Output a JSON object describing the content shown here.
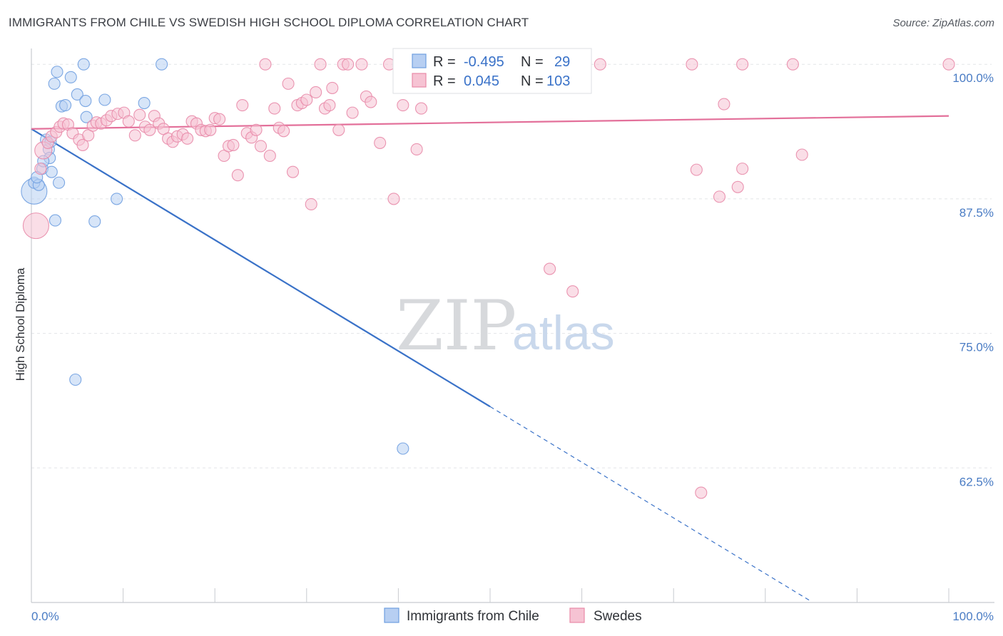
{
  "title": "IMMIGRANTS FROM CHILE VS SWEDISH HIGH SCHOOL DIPLOMA CORRELATION CHART",
  "source": "Source: ZipAtlas.com",
  "watermark": {
    "zip": "ZIP",
    "atlas": "atlas"
  },
  "colors": {
    "blue": "#6f9fe0",
    "blue_fill": "#b7cff2",
    "blue_line": "#3a72c8",
    "pink": "#e88aa8",
    "pink_fill": "#f6c3d3",
    "pink_line": "#e3709a",
    "grid": "#e3e5e8",
    "tick_label": "#4a7cc4"
  },
  "legend": {
    "r_label": "R =",
    "n_label": "N =",
    "rows": [
      {
        "r": "-0.495",
        "n": "29"
      },
      {
        "r": "0.045",
        "n": "103"
      }
    ]
  },
  "chart_data": {
    "type": "scatter",
    "xlabel": "",
    "ylabel": "High School Diploma",
    "xlim": [
      0,
      100
    ],
    "ylim": [
      50,
      102
    ],
    "x_tick_labels": [
      {
        "value": 0,
        "label": "0.0%"
      },
      {
        "value": 100,
        "label": "100.0%"
      }
    ],
    "y_ticks": [
      {
        "value": 100,
        "label": "100.0%"
      },
      {
        "value": 87.5,
        "label": "87.5%"
      },
      {
        "value": 75,
        "label": "75.0%"
      },
      {
        "value": 62.5,
        "label": "62.5%"
      }
    ],
    "grid": true,
    "legend_position": "top-center",
    "series": [
      {
        "name": "Immigrants from Chile",
        "color": "#6f9fe0",
        "trend": {
          "x": [
            0,
            50
          ],
          "y": [
            94.0,
            68.2
          ],
          "dashed_to": [
            85,
            50.1
          ]
        },
        "points": [
          [
            0.3,
            88.2,
            3
          ],
          [
            0.3,
            89.0,
            1
          ],
          [
            0.8,
            88.8,
            1
          ],
          [
            1.2,
            90.3,
            1
          ],
          [
            1.6,
            93.0,
            1
          ],
          [
            1.9,
            92.1,
            1
          ],
          [
            2.1,
            92.8,
            1
          ],
          [
            2.0,
            91.3,
            1
          ],
          [
            2.2,
            90.0,
            1
          ],
          [
            2.5,
            98.2,
            1
          ],
          [
            2.8,
            99.3,
            1
          ],
          [
            3.0,
            89.0,
            1
          ],
          [
            3.3,
            96.1,
            1
          ],
          [
            3.7,
            96.2,
            1
          ],
          [
            4.3,
            98.8,
            1
          ],
          [
            5.0,
            97.2,
            1
          ],
          [
            5.7,
            100.0,
            1
          ],
          [
            5.9,
            96.6,
            1
          ],
          [
            6.0,
            95.1,
            1
          ],
          [
            8.0,
            96.7,
            1
          ],
          [
            9.3,
            87.5,
            1
          ],
          [
            12.3,
            96.4,
            1
          ],
          [
            14.2,
            100.0,
            1
          ],
          [
            2.6,
            85.5,
            1
          ],
          [
            6.9,
            85.4,
            1
          ],
          [
            4.8,
            70.7,
            1
          ],
          [
            40.5,
            64.3,
            1
          ],
          [
            1.3,
            91.0,
            1
          ],
          [
            0.6,
            89.5,
            1
          ]
        ]
      },
      {
        "name": "Swedes",
        "color": "#e88aa8",
        "trend": {
          "x": [
            0,
            100
          ],
          "y": [
            94.0,
            95.2
          ]
        },
        "points": [
          [
            0.5,
            85.0,
            3
          ],
          [
            1.0,
            90.3,
            1
          ],
          [
            1.3,
            92.0,
            2
          ],
          [
            1.8,
            92.7,
            1
          ],
          [
            2.2,
            93.3,
            1
          ],
          [
            2.7,
            93.7,
            1
          ],
          [
            3.1,
            94.2,
            1
          ],
          [
            3.5,
            94.5,
            1
          ],
          [
            4.0,
            94.4,
            1
          ],
          [
            4.5,
            93.6,
            1
          ],
          [
            5.2,
            93.0,
            1
          ],
          [
            5.6,
            92.5,
            1
          ],
          [
            6.2,
            93.4,
            1
          ],
          [
            6.7,
            94.3,
            1
          ],
          [
            7.1,
            94.6,
            1
          ],
          [
            7.6,
            94.5,
            1
          ],
          [
            8.2,
            94.8,
            1
          ],
          [
            8.7,
            95.2,
            1
          ],
          [
            9.4,
            95.4,
            1
          ],
          [
            10.1,
            95.5,
            1
          ],
          [
            10.6,
            94.7,
            1
          ],
          [
            11.3,
            93.4,
            1
          ],
          [
            11.8,
            95.3,
            1
          ],
          [
            12.4,
            94.2,
            1
          ],
          [
            12.9,
            93.9,
            1
          ],
          [
            13.4,
            95.2,
            1
          ],
          [
            13.9,
            94.5,
            1
          ],
          [
            14.4,
            94.0,
            1
          ],
          [
            14.9,
            93.1,
            1
          ],
          [
            15.4,
            92.8,
            1
          ],
          [
            15.9,
            93.3,
            1
          ],
          [
            16.5,
            93.5,
            1
          ],
          [
            17.0,
            93.1,
            1
          ],
          [
            17.5,
            94.7,
            1
          ],
          [
            18.0,
            94.5,
            1
          ],
          [
            18.5,
            93.9,
            1
          ],
          [
            19.0,
            93.8,
            1
          ],
          [
            19.5,
            93.9,
            1
          ],
          [
            20.0,
            95.0,
            1
          ],
          [
            20.5,
            94.9,
            1
          ],
          [
            21.0,
            91.5,
            1
          ],
          [
            21.5,
            92.4,
            1
          ],
          [
            22.0,
            92.5,
            1
          ],
          [
            22.5,
            89.7,
            1
          ],
          [
            23.0,
            96.2,
            1
          ],
          [
            23.5,
            93.6,
            1
          ],
          [
            24.0,
            93.2,
            1
          ],
          [
            24.5,
            93.9,
            1
          ],
          [
            25.0,
            92.4,
            1
          ],
          [
            25.5,
            100.0,
            1
          ],
          [
            26.0,
            91.5,
            1
          ],
          [
            26.5,
            95.9,
            1
          ],
          [
            27.0,
            94.1,
            1
          ],
          [
            27.5,
            93.8,
            1
          ],
          [
            28.0,
            98.2,
            1
          ],
          [
            28.5,
            90.0,
            1
          ],
          [
            29.0,
            96.2,
            1
          ],
          [
            29.5,
            96.4,
            1
          ],
          [
            30.0,
            96.7,
            1
          ],
          [
            30.5,
            87.0,
            1
          ],
          [
            31.0,
            97.4,
            1
          ],
          [
            31.5,
            100.0,
            1
          ],
          [
            32.0,
            95.9,
            1
          ],
          [
            32.5,
            96.2,
            1
          ],
          [
            32.8,
            97.8,
            1
          ],
          [
            33.5,
            93.9,
            1
          ],
          [
            34.0,
            100.0,
            1
          ],
          [
            34.5,
            100.0,
            1
          ],
          [
            35.0,
            95.5,
            1
          ],
          [
            36.0,
            100.0,
            1
          ],
          [
            36.5,
            97.0,
            1
          ],
          [
            37.0,
            96.5,
            1
          ],
          [
            38.0,
            92.7,
            1
          ],
          [
            39.0,
            100.0,
            1
          ],
          [
            39.5,
            87.5,
            1
          ],
          [
            40.5,
            96.2,
            1
          ],
          [
            41.0,
            100.0,
            1
          ],
          [
            42.0,
            92.1,
            1
          ],
          [
            42.5,
            95.9,
            1
          ],
          [
            45.0,
            100.0,
            1
          ],
          [
            45.5,
            100.0,
            1
          ],
          [
            47.0,
            100.0,
            1
          ],
          [
            48.0,
            100.0,
            1
          ],
          [
            50.0,
            100.0,
            1
          ],
          [
            52.0,
            100.0,
            1
          ],
          [
            54.0,
            100.0,
            1
          ],
          [
            56.0,
            100.0,
            1
          ],
          [
            58.0,
            100.0,
            1
          ],
          [
            60.0,
            100.0,
            1
          ],
          [
            62.0,
            100.0,
            1
          ],
          [
            72.0,
            100.0,
            1
          ],
          [
            77.5,
            100.0,
            1
          ],
          [
            83.0,
            100.0,
            1
          ],
          [
            100.0,
            100.0,
            1
          ],
          [
            56.5,
            81.0,
            1
          ],
          [
            59.0,
            78.9,
            1
          ],
          [
            72.5,
            90.2,
            1
          ],
          [
            75.0,
            87.7,
            1
          ],
          [
            75.5,
            96.3,
            1
          ],
          [
            77.0,
            88.6,
            1
          ],
          [
            77.5,
            90.3,
            1
          ],
          [
            84.0,
            91.6,
            1
          ],
          [
            73.0,
            60.2,
            1
          ]
        ]
      }
    ]
  }
}
